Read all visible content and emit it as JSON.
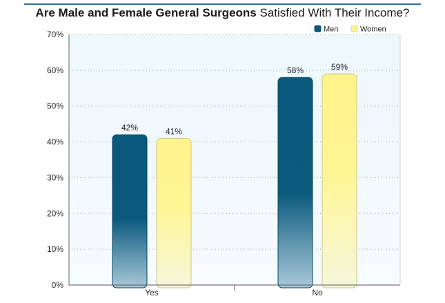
{
  "title": {
    "bold_part": "Are Male and Female General Surgeons",
    "normal_part": " Satisfied With Their Income?"
  },
  "chart_data": {
    "type": "bar",
    "categories": [
      "Yes",
      "No"
    ],
    "series": [
      {
        "name": "Men",
        "values": [
          42,
          58
        ],
        "labels": [
          "42%",
          "58%"
        ],
        "color": "#0b5a7e"
      },
      {
        "name": "Women",
        "values": [
          41,
          59
        ],
        "labels": [
          "41%",
          "59%"
        ],
        "color": "#fff38f"
      }
    ],
    "ylim": [
      0,
      70
    ],
    "yticks": [
      0,
      10,
      20,
      30,
      40,
      50,
      60,
      70
    ],
    "ytick_labels": [
      "0%",
      "10%",
      "20%",
      "30%",
      "40%",
      "50%",
      "60%",
      "70%"
    ],
    "grid": true,
    "legend_position": "top-right"
  }
}
